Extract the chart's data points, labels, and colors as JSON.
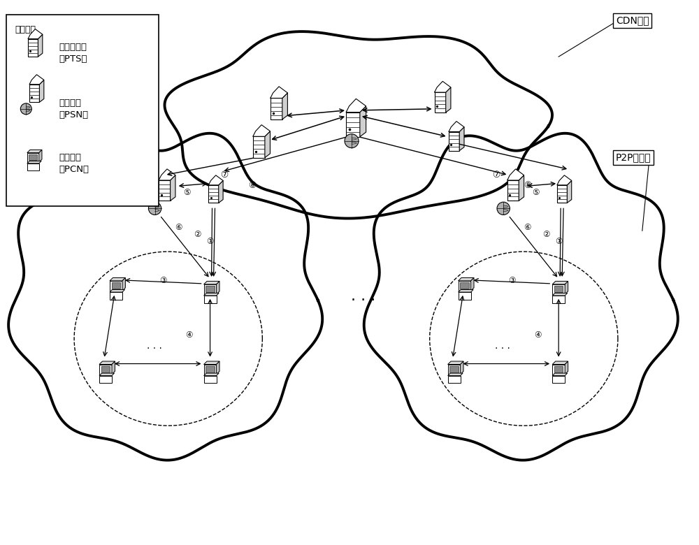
{
  "bg_color": "#ffffff",
  "line_color": "#000000",
  "cloud_lw": 2.8,
  "arrow_color": "#000000",
  "cdn_label": "CDN网络",
  "p2p_label": "P2P自治域",
  "legend_title": "部分图例",
  "legend_pts": "索引服务器\n（PTS）",
  "legend_psn": "超级节点\n（PSN）",
  "legend_pcn": "普通用户\n（PCN）"
}
